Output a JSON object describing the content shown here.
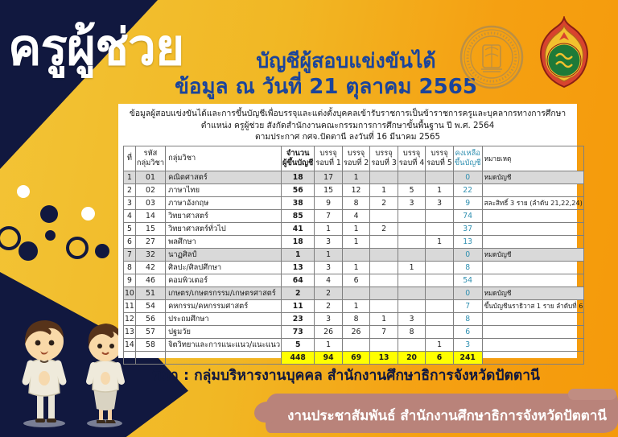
{
  "poster": {
    "main_title": "ครูผู้ช่วย",
    "subtitle_line1": "บัญชีผู้สอบแข่งขันได้",
    "subtitle_line2": "ข้อมูล ณ วันที่ 21 ตุลาคม 2565",
    "source_line": "ที่มา : กลุ่มบริหารงานบุคคล สำนักงานศึกษาธิการจังหวัดปัตตานี",
    "footer_line": "งานประชาสัมพันธ์ สำนักงานศึกษาธิการจังหวัดปัตตานี"
  },
  "logos": {
    "left": "ตราสำนักงานศึกษาธิการจังหวัดปัตตานี (Pattani Provincial Education Office)",
    "right": "ตราสำนักงานคณะกรรมการการศึกษาขั้นพื้นฐาน (สพฐ.)"
  },
  "colors": {
    "navy": "#11183f",
    "gold_bg": "#f1b724",
    "orange_bg": "#f59a0a",
    "blue_text": "#1b449b",
    "gray_row": "#d9d9d9",
    "total_yellow": "#ffff00",
    "remain_teal": "#2f8fb0",
    "brush_rose": "#b9837a"
  },
  "table": {
    "title_lines": [
      "ข้อมูลผู้สอบแข่งขันได้และการขึ้นบัญชีเพื่อบรรจุและแต่งตั้งบุคคลเข้ารับราชการเป็นข้าราชการครูและบุคลากรทางการศึกษา",
      "ตำแหน่ง ครูผู้ช่วย สังกัดสำนักงานคณะกรรมการการศึกษาขั้นพื้นฐาน ปี พ.ศ. 2564",
      "ตามประกาศ กศจ.ปัตตานี ลงวันที่ 16 มีนาคม 2565"
    ],
    "headers": [
      {
        "l1": "ที่",
        "l2": ""
      },
      {
        "l1": "รหัส",
        "l2": "กลุ่มวิชา"
      },
      {
        "l1": "กลุ่มวิชา",
        "l2": ""
      },
      {
        "l1": "จำนวน",
        "l2": "ผู้ขึ้นบัญชี"
      },
      {
        "l1": "บรรจุ",
        "l2": "รอบที่ 1"
      },
      {
        "l1": "บรรจุ",
        "l2": "รอบที่ 2"
      },
      {
        "l1": "บรรจุ",
        "l2": "รอบที่ 3"
      },
      {
        "l1": "บรรจุ",
        "l2": "รอบที่ 4"
      },
      {
        "l1": "บรรจุ",
        "l2": "รอบที่ 5"
      },
      {
        "l1": "คงเหลือ",
        "l2": "ขึ้นบัญชี"
      },
      {
        "l1": "หมายเหตุ",
        "l2": ""
      }
    ],
    "rows": [
      {
        "no": "1",
        "code": "01",
        "subject": "คณิตศาสตร์",
        "total": "18",
        "r1": "17",
        "r2": "1",
        "r3": "",
        "r4": "",
        "r5": "",
        "remain": "0",
        "note": "หมดบัญชี",
        "highlight": true
      },
      {
        "no": "2",
        "code": "02",
        "subject": "ภาษาไทย",
        "total": "56",
        "r1": "15",
        "r2": "12",
        "r3": "1",
        "r4": "5",
        "r5": "1",
        "remain": "22",
        "note": "",
        "highlight": false
      },
      {
        "no": "3",
        "code": "03",
        "subject": "ภาษาอังกฤษ",
        "total": "38",
        "r1": "9",
        "r2": "8",
        "r3": "2",
        "r4": "3",
        "r5": "3",
        "remain": "9",
        "note": "สละสิทธิ์ 3 ราย (ลำดับ 21,22,24)",
        "highlight": false
      },
      {
        "no": "4",
        "code": "14",
        "subject": "วิทยาศาสตร์",
        "total": "85",
        "r1": "7",
        "r2": "4",
        "r3": "",
        "r4": "",
        "r5": "",
        "remain": "74",
        "note": "",
        "highlight": false
      },
      {
        "no": "5",
        "code": "15",
        "subject": "วิทยาศาสตร์ทั่วไป",
        "total": "41",
        "r1": "1",
        "r2": "1",
        "r3": "2",
        "r4": "",
        "r5": "",
        "remain": "37",
        "note": "",
        "highlight": false
      },
      {
        "no": "6",
        "code": "27",
        "subject": "พลศึกษา",
        "total": "18",
        "r1": "3",
        "r2": "1",
        "r3": "",
        "r4": "",
        "r5": "1",
        "remain": "13",
        "note": "",
        "highlight": false
      },
      {
        "no": "7",
        "code": "32",
        "subject": "นาฏศิลป์",
        "total": "1",
        "r1": "1",
        "r2": "",
        "r3": "",
        "r4": "",
        "r5": "",
        "remain": "0",
        "note": "หมดบัญชี",
        "highlight": true
      },
      {
        "no": "8",
        "code": "42",
        "subject": "ศิลปะ/ศิลปศึกษา",
        "total": "13",
        "r1": "3",
        "r2": "1",
        "r3": "",
        "r4": "1",
        "r5": "",
        "remain": "8",
        "note": "",
        "highlight": false
      },
      {
        "no": "9",
        "code": "46",
        "subject": "คอมพิวเตอร์",
        "total": "64",
        "r1": "4",
        "r2": "6",
        "r3": "",
        "r4": "",
        "r5": "",
        "remain": "54",
        "note": "",
        "highlight": false
      },
      {
        "no": "10",
        "code": "51",
        "subject": "เกษตร/เกษตรกรรม/เกษตรศาสตร์",
        "total": "2",
        "r1": "2",
        "r2": "",
        "r3": "",
        "r4": "",
        "r5": "",
        "remain": "0",
        "note": "หมดบัญชี",
        "highlight": true
      },
      {
        "no": "11",
        "code": "54",
        "subject": "คหกรรม/คหกรรมศาสตร์",
        "total": "11",
        "r1": "2",
        "r2": "1",
        "r3": "",
        "r4": "",
        "r5": "",
        "remain": "7",
        "note": "ขึ้นบัญชีนราธิวาส 1 ราย ลำดับที่ 6",
        "highlight": false
      },
      {
        "no": "12",
        "code": "56",
        "subject": "ประถมศึกษา",
        "total": "23",
        "r1": "3",
        "r2": "8",
        "r3": "1",
        "r4": "3",
        "r5": "",
        "remain": "8",
        "note": "",
        "highlight": false
      },
      {
        "no": "13",
        "code": "57",
        "subject": "ปฐมวัย",
        "total": "73",
        "r1": "26",
        "r2": "26",
        "r3": "7",
        "r4": "8",
        "r5": "",
        "remain": "6",
        "note": "",
        "highlight": false
      },
      {
        "no": "14",
        "code": "58",
        "subject": "จิตวิทยาและการแนะแนว/แนะแนว",
        "total": "5",
        "r1": "1",
        "r2": "",
        "r3": "",
        "r4": "",
        "r5": "1",
        "remain": "3",
        "note": "",
        "highlight": false
      }
    ],
    "total_row": {
      "no": "",
      "code": "",
      "subject": "",
      "total": "448",
      "r1": "94",
      "r2": "69",
      "r3": "13",
      "r4": "20",
      "r5": "6",
      "remain": "241",
      "note": ""
    }
  }
}
